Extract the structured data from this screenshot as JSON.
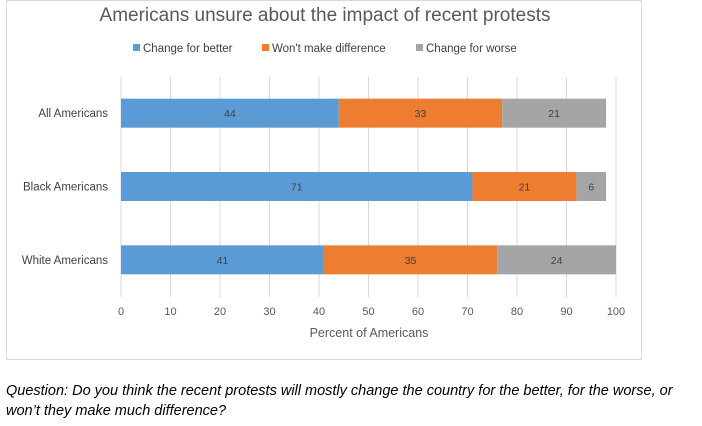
{
  "chart_data": {
    "type": "bar",
    "orientation": "horizontal",
    "stacked": true,
    "title": "Americans unsure about the impact of recent protests",
    "xlabel": "Percent of Americans",
    "ylabel": "",
    "xlim": [
      0,
      100
    ],
    "xticks": [
      "0",
      "10",
      "20",
      "30",
      "40",
      "50",
      "60",
      "70",
      "80",
      "90",
      "100"
    ],
    "grid": true,
    "legend_position": "top",
    "categories": [
      "All Americans",
      "Black Americans",
      "White Americans"
    ],
    "series": [
      {
        "name": "Change for better",
        "color": "#5B9BD5",
        "values": [
          44,
          71,
          41
        ]
      },
      {
        "name": "Won't make difference",
        "color": "#ED7D31",
        "values": [
          33,
          21,
          35
        ]
      },
      {
        "name": "Change for worse",
        "color": "#A5A5A5",
        "values": [
          21,
          6,
          24
        ]
      }
    ]
  },
  "question": "Question: Do you think the recent protests will mostly change the country for the better, for the worse, or won’t they make much difference?"
}
